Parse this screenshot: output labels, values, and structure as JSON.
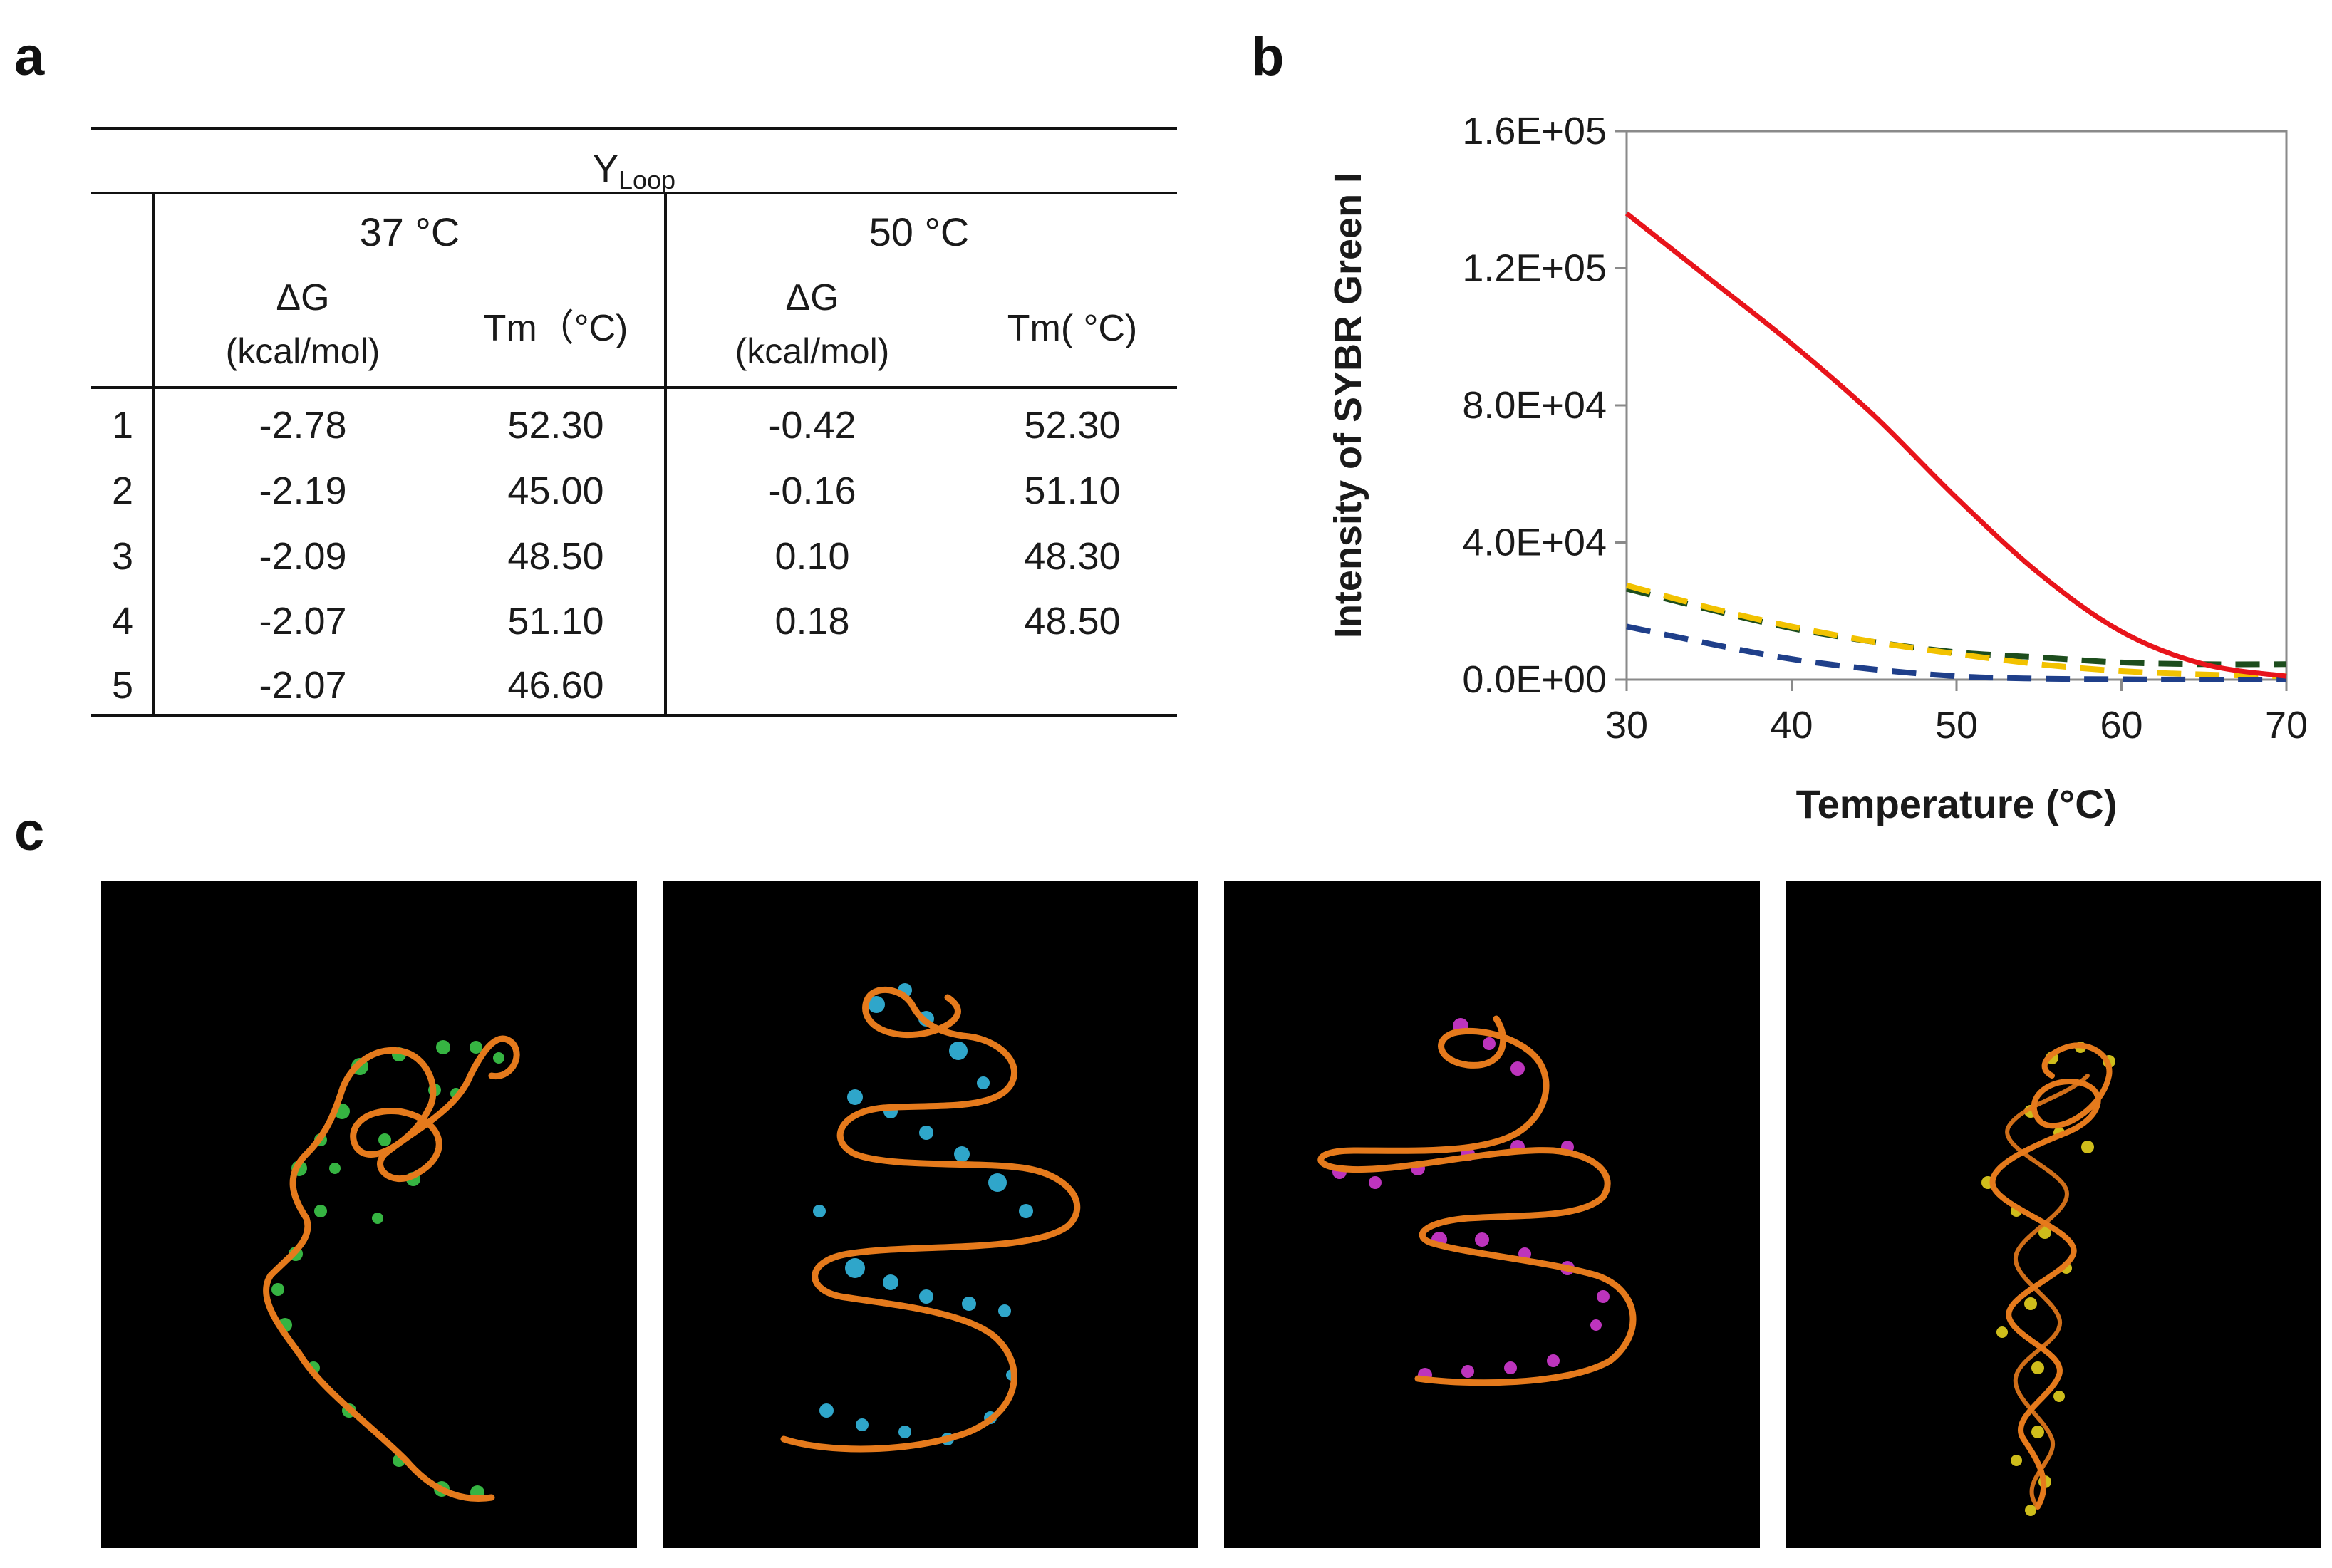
{
  "panels": {
    "a": "a",
    "b": "b",
    "c": "c"
  },
  "table": {
    "group_title": "Y",
    "group_title_sub": "Loop",
    "temperatures": [
      "37 °C",
      "50 °C"
    ],
    "dg_label": "ΔG",
    "dg_unit": "(kcal/mol)",
    "tm_labels": [
      "Tm（°C)",
      "Tm( °C)"
    ],
    "rows": [
      {
        "idx": "1",
        "dg37": "-2.78",
        "tm37": "52.30",
        "dg50": "-0.42",
        "tm50": "52.30"
      },
      {
        "idx": "2",
        "dg37": "-2.19",
        "tm37": "45.00",
        "dg50": "-0.16",
        "tm50": "51.10"
      },
      {
        "idx": "3",
        "dg37": "-2.09",
        "tm37": "48.50",
        "dg50": "0.10",
        "tm50": "48.30"
      },
      {
        "idx": "4",
        "dg37": "-2.07",
        "tm37": "51.10",
        "dg50": "0.18",
        "tm50": "48.50"
      },
      {
        "idx": "5",
        "dg37": "-2.07",
        "tm37": "46.60",
        "dg50": "",
        "tm50": ""
      }
    ]
  },
  "chart_data": {
    "type": "line",
    "title": "",
    "xlabel": "Temperature (°C)",
    "ylabel": "Intensity of SYBR Green I",
    "xlim": [
      30,
      70
    ],
    "ylim": [
      0,
      160000
    ],
    "xticks": [
      30,
      40,
      50,
      60,
      70
    ],
    "xtick_labels": [
      "30",
      "40",
      "50",
      "60",
      "70"
    ],
    "yticks": [
      0,
      40000,
      80000,
      120000,
      160000
    ],
    "ytick_labels": [
      "0.0E+00",
      "4.0E+04",
      "8.0E+04",
      "1.2E+05",
      "1.6E+05"
    ],
    "grid": false,
    "x": [
      30,
      35,
      40,
      45,
      50,
      55,
      60,
      65,
      70
    ],
    "series": [
      {
        "name": "red",
        "color": "#e8141b",
        "dash": "solid",
        "values": [
          136000,
          117000,
          98000,
          77000,
          53000,
          31000,
          14000,
          4500,
          1000
        ]
      },
      {
        "name": "dark green",
        "color": "#1d4d1d",
        "dash": "dashed",
        "values": [
          26500,
          20500,
          15000,
          11000,
          8000,
          6500,
          5000,
          4500,
          4500
        ]
      },
      {
        "name": "yellow",
        "color": "#f2c200",
        "dash": "dashed",
        "values": [
          27500,
          21000,
          15500,
          11000,
          7500,
          4500,
          2500,
          1500,
          1000
        ]
      },
      {
        "name": "navy",
        "color": "#1f3f8a",
        "dash": "dashed",
        "values": [
          15500,
          10500,
          6000,
          3000,
          1000,
          300,
          100,
          0,
          0
        ]
      }
    ]
  },
  "structures": {
    "colors": [
      "#3cc84a",
      "#35b8e0",
      "#d23ad2",
      "#e5d21e"
    ],
    "backbone_color": "#e57a1c"
  }
}
